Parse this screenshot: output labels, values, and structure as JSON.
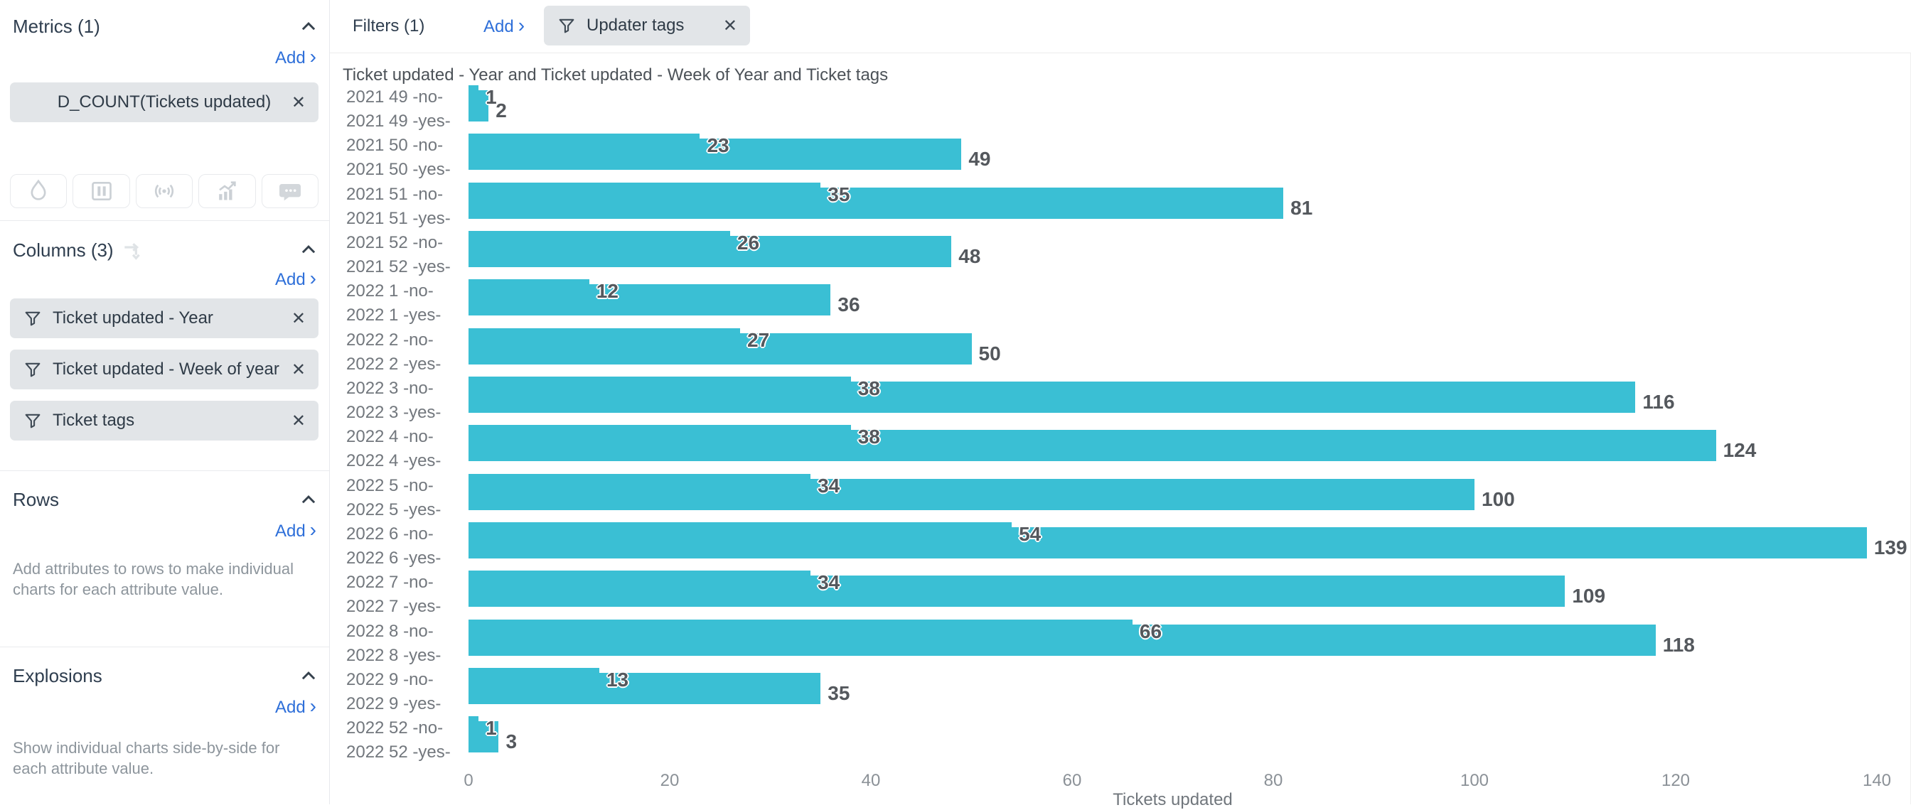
{
  "icons": {
    "close": "✕",
    "add_chevron": "›"
  },
  "sidebar": {
    "metrics": {
      "title": "Metrics (1)",
      "add_label": "Add",
      "chips": [
        {
          "label": "D_COUNT(Tickets updated)"
        }
      ]
    },
    "viz_icons": [
      {
        "name": "droplet-icon"
      },
      {
        "name": "columns-icon"
      },
      {
        "name": "signal-icon"
      },
      {
        "name": "trend-chart-icon"
      },
      {
        "name": "comment-icon"
      }
    ],
    "columns": {
      "title": "Columns (3)",
      "add_label": "Add",
      "chips": [
        {
          "label": "Ticket updated - Year"
        },
        {
          "label": "Ticket updated - Week of year"
        },
        {
          "label": "Ticket tags"
        }
      ]
    },
    "rows": {
      "title": "Rows",
      "add_label": "Add",
      "hint": "Add attributes to rows to make individual charts for each attribute value."
    },
    "explosions": {
      "title": "Explosions",
      "add_label": "Add",
      "hint": "Show individual charts side-by-side for each attribute value."
    }
  },
  "filters": {
    "title": "Filters (1)",
    "add_label": "Add",
    "chips": [
      {
        "label": "Updater tags"
      }
    ]
  },
  "chart_data": {
    "type": "bar",
    "orientation": "horizontal",
    "title": "Ticket updated - Year and Ticket updated - Week of Year and Ticket tags",
    "xlabel": "Tickets updated",
    "xlim": [
      0,
      140
    ],
    "xticks": [
      0,
      20,
      40,
      60,
      80,
      100,
      120,
      140
    ],
    "bar_color": "#3abfd4",
    "legend": "none",
    "grid": false,
    "groups": [
      {
        "label_no": "2021 49 -no-",
        "label_yes": "2021 49 -yes-",
        "no": 1,
        "yes": 2
      },
      {
        "label_no": "2021 50 -no-",
        "label_yes": "2021 50 -yes-",
        "no": 23,
        "yes": 49
      },
      {
        "label_no": "2021 51 -no-",
        "label_yes": "2021 51 -yes-",
        "no": 35,
        "yes": 81
      },
      {
        "label_no": "2021 52 -no-",
        "label_yes": "2021 52 -yes-",
        "no": 26,
        "yes": 48
      },
      {
        "label_no": "2022 1 -no-",
        "label_yes": "2022 1 -yes-",
        "no": 12,
        "yes": 36
      },
      {
        "label_no": "2022 2 -no-",
        "label_yes": "2022 2 -yes-",
        "no": 27,
        "yes": 50
      },
      {
        "label_no": "2022 3 -no-",
        "label_yes": "2022 3 -yes-",
        "no": 38,
        "yes": 116
      },
      {
        "label_no": "2022 4 -no-",
        "label_yes": "2022 4 -yes-",
        "no": 38,
        "yes": 124
      },
      {
        "label_no": "2022 5 -no-",
        "label_yes": "2022 5 -yes-",
        "no": 34,
        "yes": 100
      },
      {
        "label_no": "2022 6 -no-",
        "label_yes": "2022 6 -yes-",
        "no": 54,
        "yes": 139
      },
      {
        "label_no": "2022 7 -no-",
        "label_yes": "2022 7 -yes-",
        "no": 34,
        "yes": 109
      },
      {
        "label_no": "2022 8 -no-",
        "label_yes": "2022 8 -yes-",
        "no": 66,
        "yes": 118
      },
      {
        "label_no": "2022 9 -no-",
        "label_yes": "2022 9 -yes-",
        "no": 13,
        "yes": 35
      },
      {
        "label_no": "2022 52 -no-",
        "label_yes": "2022 52 -yes-",
        "no": 1,
        "yes": 3
      }
    ]
  }
}
